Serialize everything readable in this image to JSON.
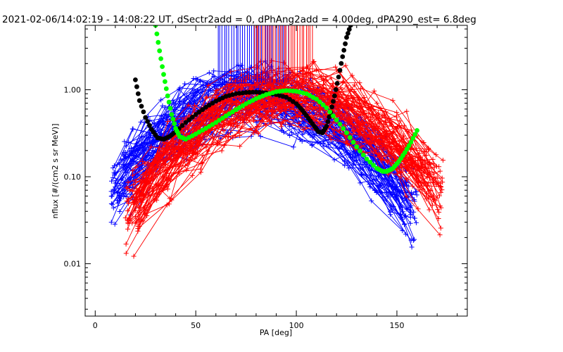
{
  "chart_data": {
    "type": "line",
    "title": "2021-02-06/14:02:19 - 14:08:22 UT, dSectr2add = 0, dPhAng2add = 4.00deg, dPA290_est=    6.8deg",
    "xlabel": "PA [deg]",
    "ylabel": "nflux [#/(cm2 s sr MeV)]",
    "xlim": [
      -5,
      185
    ],
    "ylim": [
      0.0025,
      5.5
    ],
    "yscale": "log",
    "x_ticks": [
      0,
      50,
      100,
      150
    ],
    "x_tick_labels": [
      "0",
      "50",
      "100",
      "150"
    ],
    "y_ticks": [
      0.01,
      0.1,
      1.0
    ],
    "y_tick_labels": [
      "0.01",
      "0.10",
      "1.00"
    ],
    "grid": false,
    "colors": {
      "blue": "#0000ff",
      "red": "#ff0000",
      "black_fit": "#000000",
      "green_fit": "#00ff00",
      "frame": "#000000",
      "background": "#ffffff"
    },
    "series": [
      {
        "color": "blue",
        "marker": "plus",
        "profile": {
          "peak_x": 80,
          "peak_y": 0.85,
          "width": 45,
          "x_min": 8,
          "x_max": 160,
          "floor": 0.006
        },
        "pitch_angle_lines": {
          "x_start": 61,
          "x_end": 96,
          "count": 32,
          "y_top": 5.5,
          "y_bottom": 1.2
        }
      },
      {
        "color": "red",
        "marker": "plus",
        "profile": {
          "peak_x": 97,
          "peak_y": 0.95,
          "width": 45,
          "x_min": 15,
          "x_max": 173,
          "floor": 0.005
        },
        "pitch_angle_lines": {
          "x_start": 79,
          "x_end": 108,
          "count": 28,
          "y_top": 5.5,
          "y_bottom": 1.2
        }
      },
      {
        "color": "black_fit",
        "style": "thick-dots",
        "x": [
          20,
          22,
          25,
          28,
          31,
          34,
          37,
          40,
          45,
          50,
          55,
          60,
          65,
          70,
          75,
          80,
          85,
          90,
          95,
          100,
          103,
          106,
          109,
          111,
          113,
          115,
          117,
          119,
          121,
          123,
          125,
          127
        ],
        "y": [
          1.3,
          0.75,
          0.48,
          0.35,
          0.28,
          0.27,
          0.29,
          0.33,
          0.42,
          0.52,
          0.63,
          0.74,
          0.84,
          0.9,
          0.93,
          0.94,
          0.92,
          0.88,
          0.82,
          0.69,
          0.58,
          0.47,
          0.38,
          0.33,
          0.32,
          0.38,
          0.55,
          0.85,
          1.4,
          2.4,
          4.0,
          5.5
        ]
      },
      {
        "color": "green_fit",
        "style": "thick-dots",
        "x": [
          30,
          32,
          34,
          36,
          38,
          40,
          42,
          45,
          50,
          55,
          60,
          65,
          70,
          75,
          80,
          85,
          90,
          95,
          100,
          105,
          110,
          115,
          120,
          125,
          130,
          135,
          140,
          143,
          145,
          148,
          151,
          154,
          157,
          160
        ],
        "y": [
          5.5,
          2.8,
          1.5,
          0.85,
          0.52,
          0.36,
          0.29,
          0.27,
          0.31,
          0.36,
          0.42,
          0.5,
          0.59,
          0.69,
          0.79,
          0.88,
          0.95,
          0.98,
          0.96,
          0.9,
          0.78,
          0.62,
          0.45,
          0.32,
          0.22,
          0.16,
          0.125,
          0.115,
          0.115,
          0.125,
          0.15,
          0.19,
          0.25,
          0.34
        ]
      }
    ]
  }
}
